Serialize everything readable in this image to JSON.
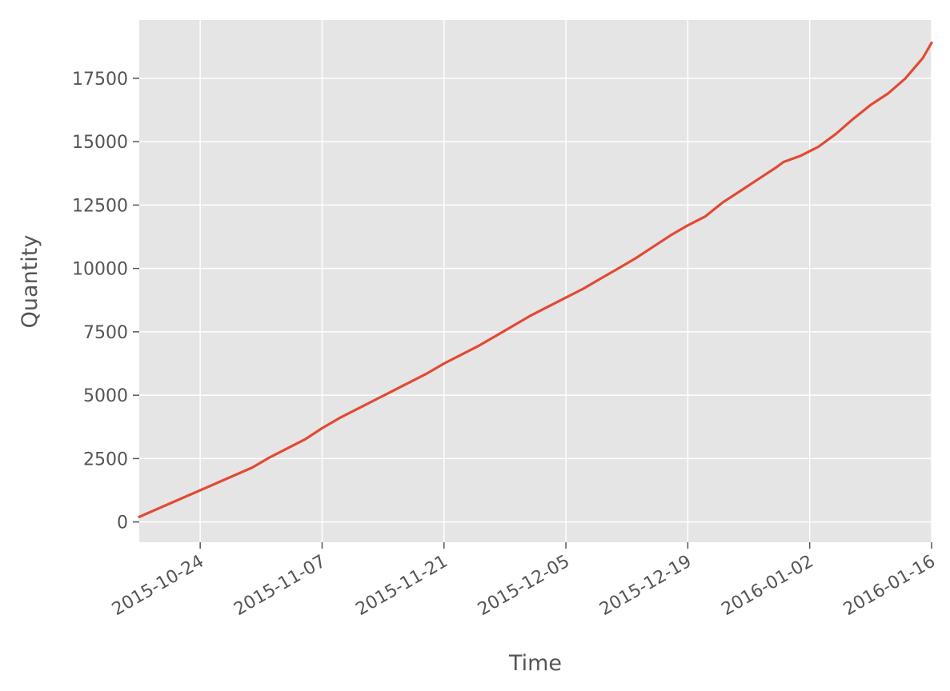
{
  "chart_data": {
    "type": "line",
    "title": "",
    "xlabel": "Time",
    "ylabel": "Quantity",
    "x_tick_labels": [
      "2015-10-24",
      "2015-11-07",
      "2015-11-21",
      "2015-12-05",
      "2015-12-19",
      "2016-01-02",
      "2016-01-16"
    ],
    "y_tick_labels": [
      "0",
      "2500",
      "5000",
      "7500",
      "10000",
      "12500",
      "15000",
      "17500"
    ],
    "xlim": [
      "2015-10-17",
      "2016-01-16"
    ],
    "ylim": [
      -800,
      19800
    ],
    "grid": true,
    "legend": "none",
    "style": {
      "background": "#e5e5e5",
      "grid_color": "#ffffff",
      "line_color": "#e24a33",
      "text_color": "#555555"
    },
    "series": [
      {
        "x": [
          "2015-10-17",
          "2015-10-18",
          "2015-10-20",
          "2015-10-22",
          "2015-10-24",
          "2015-10-26",
          "2015-10-28",
          "2015-10-30",
          "2015-11-01",
          "2015-11-03",
          "2015-11-05",
          "2015-11-07",
          "2015-11-09",
          "2015-11-11",
          "2015-11-13",
          "2015-11-15",
          "2015-11-17",
          "2015-11-19",
          "2015-11-21",
          "2015-11-23",
          "2015-11-25",
          "2015-11-27",
          "2015-11-29",
          "2015-12-01",
          "2015-12-03",
          "2015-12-05",
          "2015-12-07",
          "2015-12-09",
          "2015-12-11",
          "2015-12-13",
          "2015-12-15",
          "2015-12-17",
          "2015-12-19",
          "2015-12-21",
          "2015-12-23",
          "2015-12-25",
          "2015-12-27",
          "2015-12-29",
          "2015-12-30",
          "2016-01-01",
          "2016-01-03",
          "2016-01-05",
          "2016-01-07",
          "2016-01-09",
          "2016-01-11",
          "2016-01-13",
          "2016-01-14",
          "2016-01-15",
          "2016-01-16"
        ],
        "y": [
          200,
          350,
          650,
          950,
          1250,
          1550,
          1850,
          2150,
          2550,
          2900,
          3250,
          3700,
          4100,
          4450,
          4800,
          5150,
          5500,
          5850,
          6250,
          6600,
          6950,
          7350,
          7750,
          8150,
          8500,
          8850,
          9200,
          9600,
          10000,
          10400,
          10850,
          11300,
          11700,
          12050,
          12600,
          13050,
          13500,
          13950,
          14200,
          14450,
          14800,
          15300,
          15900,
          16450,
          16900,
          17500,
          17900,
          18300,
          18900
        ]
      }
    ]
  }
}
